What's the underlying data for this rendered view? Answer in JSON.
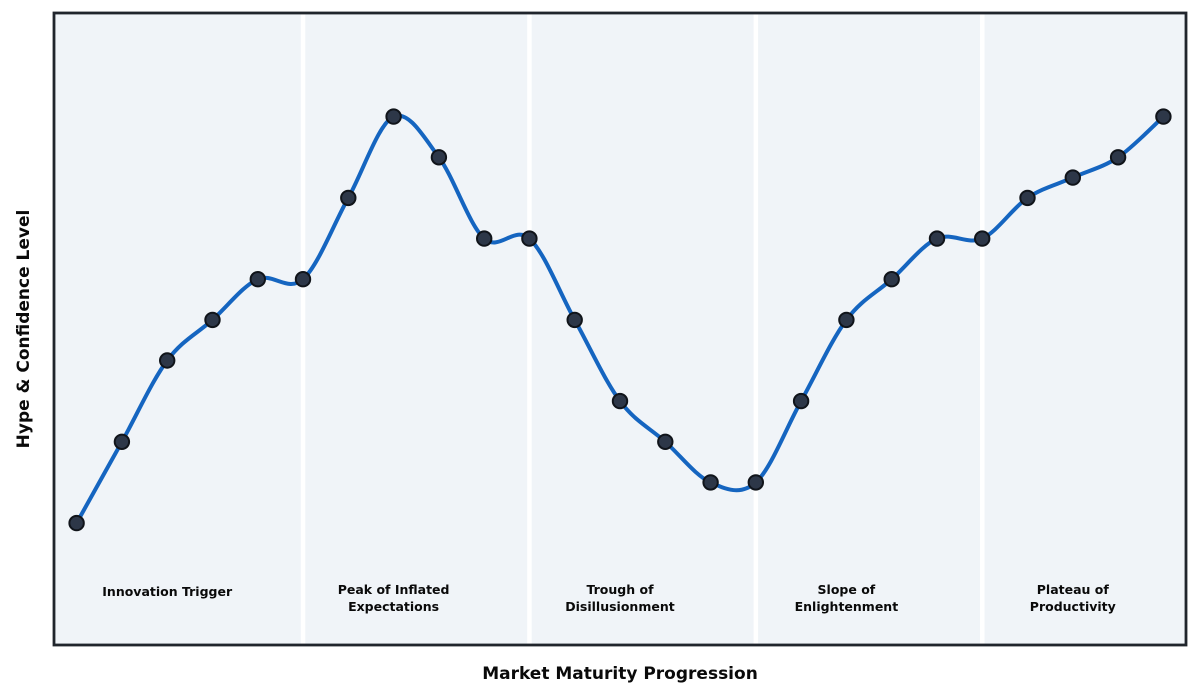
{
  "figure": {
    "xlabel": "Market Maturity Progression",
    "ylabel": "Hype & Confidence Level"
  },
  "chart_data": {
    "type": "line",
    "title": "",
    "xlabel": "Market Maturity Progression",
    "ylabel": "Hype & Confidence Level",
    "x": [
      0,
      1,
      2,
      3,
      4,
      5,
      6,
      7,
      8,
      9,
      10,
      11,
      12,
      13,
      14,
      15,
      16,
      17,
      18,
      19,
      20,
      21,
      22,
      23,
      24
    ],
    "values": [
      10,
      14,
      18,
      20,
      22,
      22,
      26,
      30,
      28,
      24,
      24,
      20,
      16,
      14,
      12,
      12,
      16,
      20,
      22,
      24,
      24,
      26,
      27,
      28,
      30
    ],
    "xlim": [
      -0.5,
      24.5
    ],
    "ylim": [
      4,
      35.1
    ],
    "grid": false,
    "legend": null,
    "x_tick_labels_visible": false,
    "y_tick_labels_visible": false,
    "smoothing": "spline",
    "line_color": "#1565c0",
    "line_width": 4,
    "marker_fill_color": "#2d3748",
    "marker_edge_color": "#10141a",
    "marker_radius": 7.2,
    "plot_bg_color": "#f0f4f8",
    "separator_color": "#ffffff",
    "frame_color": "#20252c",
    "phase_boundaries": [
      5,
      10,
      15,
      20
    ],
    "phases": [
      {
        "label_x": 2,
        "lines": [
          "Innovation Trigger"
        ]
      },
      {
        "label_x": 7,
        "lines": [
          "Peak of Inflated",
          "Expectations"
        ]
      },
      {
        "label_x": 12,
        "lines": [
          "Trough of",
          "Disillusionment"
        ]
      },
      {
        "label_x": 17,
        "lines": [
          "Slope of",
          "Enlightenment"
        ]
      },
      {
        "label_x": 22,
        "lines": [
          "Plateau of",
          "Productivity"
        ]
      }
    ]
  }
}
